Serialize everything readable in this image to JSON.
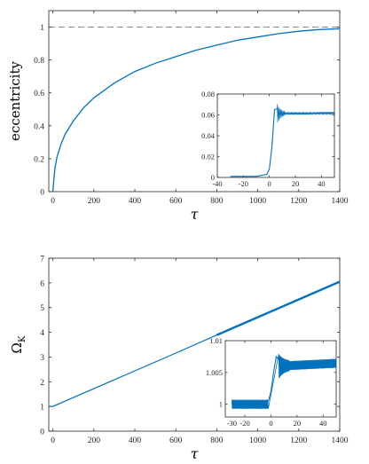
{
  "chart_data": [
    {
      "type": "line",
      "title": "",
      "xlabel": "τ",
      "ylabel": "eccentricity",
      "xlim": [
        -20,
        1400
      ],
      "ylim": [
        0,
        1.1
      ],
      "xticks": [
        "0",
        "200",
        "400",
        "600",
        "800",
        "1000",
        "1200",
        "1400"
      ],
      "yticks": [
        "0",
        "0.2",
        "0.4",
        "0.6",
        "0.8",
        "1"
      ],
      "grid": false,
      "reference_line": {
        "y": 1,
        "style": "dashed"
      },
      "series": [
        {
          "x": [
            0,
            5,
            10,
            20,
            40,
            60,
            100,
            150,
            200,
            300,
            400,
            500,
            600,
            700,
            800,
            900,
            1000,
            1100,
            1200,
            1300,
            1400
          ],
          "y": [
            0,
            0.08,
            0.14,
            0.21,
            0.29,
            0.35,
            0.43,
            0.51,
            0.57,
            0.66,
            0.73,
            0.78,
            0.82,
            0.86,
            0.89,
            0.92,
            0.94,
            0.96,
            0.975,
            0.985,
            0.99
          ]
        }
      ],
      "inset": {
        "type": "line",
        "xlim": [
          -40,
          50
        ],
        "ylim": [
          0,
          0.08
        ],
        "xticks": [
          "-40",
          "-20",
          "0",
          "20",
          "40"
        ],
        "yticks": [
          "0",
          "0.02",
          "0.04",
          "0.06",
          "0.08"
        ],
        "x": [
          -30,
          -20,
          -10,
          -2,
          0,
          2,
          4,
          6,
          8,
          10,
          14,
          20,
          30,
          40,
          50
        ],
        "y": [
          0.001,
          0.001,
          0.001,
          0.003,
          0.008,
          0.03,
          0.065,
          0.066,
          0.061,
          0.062,
          0.061,
          0.061,
          0.061,
          0.062,
          0.062
        ]
      }
    },
    {
      "type": "line",
      "title": "",
      "xlabel": "τ",
      "ylabel": "Ω_K",
      "ylabel_main": "Ω",
      "ylabel_sub": "K",
      "xlim": [
        -20,
        1400
      ],
      "ylim": [
        0,
        7
      ],
      "xticks": [
        "0",
        "200",
        "400",
        "600",
        "800",
        "1000",
        "1200",
        "1400"
      ],
      "yticks": [
        "0",
        "1",
        "2",
        "3",
        "4",
        "5",
        "6",
        "7"
      ],
      "grid": false,
      "series": [
        {
          "x": [
            -20,
            0,
            100,
            200,
            400,
            600,
            800,
            1000,
            1200,
            1400
          ],
          "y": [
            1,
            1,
            1.36,
            1.72,
            2.44,
            3.16,
            3.89,
            4.61,
            5.33,
            6.05
          ]
        }
      ],
      "inset": {
        "type": "line",
        "xlim": [
          -35,
          50
        ],
        "ylim": [
          0.998,
          1.01
        ],
        "xticks": [
          "-20",
          "0",
          "20",
          "40"
        ],
        "xticks_extra": [
          "-30"
        ],
        "yticks": [
          "1",
          "1.005",
          "1.01"
        ],
        "x": [
          -30,
          -20,
          -10,
          -2,
          0,
          2,
          4,
          6,
          8,
          12,
          20,
          30,
          40,
          50
        ],
        "y": [
          1.0,
          1.0,
          1.0,
          1.0005,
          1.002,
          1.005,
          1.0075,
          1.007,
          1.0065,
          1.006,
          1.006,
          1.006,
          1.0062,
          1.0064
        ]
      }
    }
  ],
  "colors": {
    "line": "#0072BD",
    "axes": "#262626",
    "reference": "#777777"
  }
}
